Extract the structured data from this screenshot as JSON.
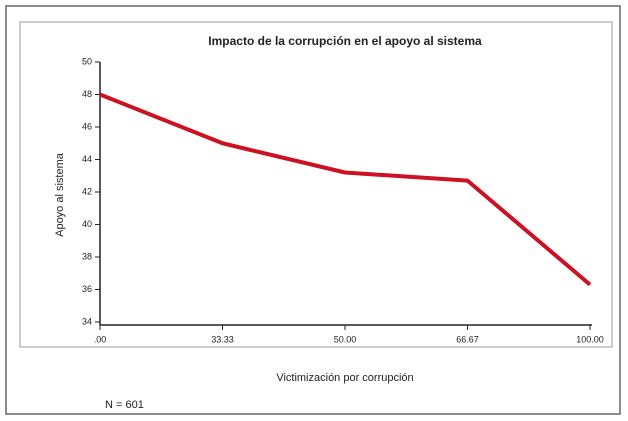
{
  "chart_data": {
    "type": "line",
    "title": "Impacto de la corrupción en el apoyo al sistema",
    "y_label": "Apoyo al sistema",
    "x_label": "Victimización por corrupción",
    "note": "N = 601",
    "categories": [
      ".00",
      "33.33",
      "50.00",
      "66.67",
      "100.00"
    ],
    "series": [
      {
        "name": "Apoyo al sistema",
        "color": "#cc1122",
        "values": [
          48,
          45,
          43.2,
          42.7,
          36.3
        ]
      }
    ],
    "ylim": [
      34,
      50
    ],
    "yticks": [
      34,
      36,
      38,
      40,
      42,
      44,
      46,
      48,
      50
    ]
  }
}
